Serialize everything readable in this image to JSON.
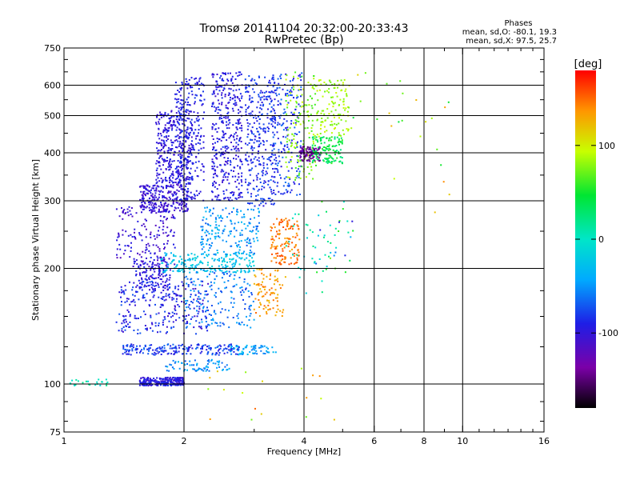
{
  "chart_data": {
    "type": "scatter",
    "title": "Tromsø 20141104 20:32:00-20:33:43",
    "subtitle": "RwPretec (Bp)",
    "xlabel": "Frequency [MHz]",
    "ylabel": "Stationary phase Virtual Height [km]",
    "x_scale": "log",
    "y_scale": "log",
    "xlim": [
      1,
      16
    ],
    "ylim": [
      75,
      750
    ],
    "x_ticks": [
      1,
      2,
      4,
      6,
      8,
      10,
      16
    ],
    "x_tick_labels": [
      "1",
      "2",
      "4",
      "6",
      "8",
      "10",
      "16"
    ],
    "y_ticks": [
      75,
      100,
      200,
      300,
      400,
      500,
      600,
      750
    ],
    "y_tick_labels": [
      "75",
      "100",
      "200",
      "300",
      "400",
      "500",
      "600",
      "750"
    ],
    "x_grid": [
      2,
      4,
      6,
      8,
      10
    ],
    "y_grid": [
      100,
      200,
      300,
      400,
      500,
      600
    ],
    "grid": true,
    "stats": {
      "heading": "Phases",
      "line_o": "mean, sd,O: -80.1, 19.3",
      "line_x": "mean, sd,X:  97.5, 25.7"
    },
    "colorbar": {
      "label": "[deg]",
      "range": [
        -180,
        180
      ],
      "ticks": [
        100,
        0,
        -100
      ],
      "tick_labels": [
        "100",
        "0",
        "-100"
      ]
    },
    "clusters": [
      {
        "f": [
          1.55,
          2.0
        ],
        "h": [
          99,
          104
        ],
        "phase": [
          -110,
          -80
        ],
        "n": 260
      },
      {
        "f": [
          1.03,
          1.3
        ],
        "h": [
          99,
          103
        ],
        "phase": [
          -20,
          20
        ],
        "n": 25
      },
      {
        "f": [
          1.4,
          2.75
        ],
        "h": [
          119,
          127
        ],
        "phase": [
          -100,
          -60
        ],
        "n": 200
      },
      {
        "f": [
          2.6,
          3.4
        ],
        "h": [
          119,
          126
        ],
        "phase": [
          -60,
          -20
        ],
        "n": 60
      },
      {
        "f": [
          1.8,
          2.6
        ],
        "h": [
          108,
          116
        ],
        "phase": [
          -70,
          -30
        ],
        "n": 70
      },
      {
        "f": [
          1.35,
          2.3
        ],
        "h": [
          135,
          185
        ],
        "phase": [
          -110,
          -70
        ],
        "n": 260
      },
      {
        "f": [
          1.5,
          1.85
        ],
        "h": [
          175,
          215
        ],
        "phase": [
          -110,
          -80
        ],
        "n": 140
      },
      {
        "f": [
          1.35,
          1.9
        ],
        "h": [
          200,
          290
        ],
        "phase": [
          -120,
          -90
        ],
        "n": 160
      },
      {
        "f": [
          1.75,
          3.0
        ],
        "h": [
          195,
          220
        ],
        "phase": [
          -40,
          -10
        ],
        "n": 200
      },
      {
        "f": [
          2.0,
          3.0
        ],
        "h": [
          140,
          200
        ],
        "phase": [
          -80,
          -40
        ],
        "n": 170
      },
      {
        "f": [
          2.2,
          3.1
        ],
        "h": [
          215,
          290
        ],
        "phase": [
          -70,
          -30
        ],
        "n": 180
      },
      {
        "f": [
          1.55,
          2.05
        ],
        "h": [
          280,
          330
        ],
        "phase": [
          -115,
          -90
        ],
        "n": 260
      },
      {
        "f": [
          1.7,
          2.1
        ],
        "h": [
          330,
          520
        ],
        "phase": [
          -110,
          -85
        ],
        "n": 330
      },
      {
        "f": [
          1.9,
          2.25
        ],
        "h": [
          300,
          630
        ],
        "phase": [
          -105,
          -80
        ],
        "n": 260
      },
      {
        "f": [
          2.35,
          2.8
        ],
        "h": [
          300,
          650
        ],
        "phase": [
          -110,
          -80
        ],
        "n": 380
      },
      {
        "f": [
          2.85,
          3.4
        ],
        "h": [
          290,
          640
        ],
        "phase": [
          -100,
          -70
        ],
        "n": 300
      },
      {
        "f": [
          3.0,
          3.6
        ],
        "h": [
          150,
          200
        ],
        "phase": [
          120,
          150
        ],
        "n": 90
      },
      {
        "f": [
          3.3,
          3.9
        ],
        "h": [
          205,
          270
        ],
        "phase": [
          130,
          160
        ],
        "n": 130
      },
      {
        "f": [
          3.3,
          3.95
        ],
        "h": [
          310,
          650
        ],
        "phase": [
          -100,
          -60
        ],
        "n": 200
      },
      {
        "f": [
          3.6,
          4.3
        ],
        "h": [
          340,
          650
        ],
        "phase": [
          60,
          100
        ],
        "n": 140
      },
      {
        "f": [
          3.9,
          4.4
        ],
        "h": [
          380,
          415
        ],
        "phase": [
          -150,
          -120
        ],
        "n": 110
      },
      {
        "f": [
          4.2,
          5.0
        ],
        "h": [
          375,
          440
        ],
        "phase": [
          20,
          60
        ],
        "n": 130
      },
      {
        "f": [
          4.3,
          5.2
        ],
        "h": [
          440,
          620
        ],
        "phase": [
          70,
          100
        ],
        "n": 120
      },
      {
        "f": [
          3.6,
          4.7
        ],
        "h": [
          170,
          290
        ],
        "phase": [
          -30,
          30
        ],
        "n": 35
      },
      {
        "f": [
          4.2,
          5.5
        ],
        "h": [
          195,
          300
        ],
        "phase": [
          -100,
          80
        ],
        "n": 30
      },
      {
        "f": [
          5.2,
          10.0
        ],
        "h": [
          280,
          650
        ],
        "phase": [
          40,
          140
        ],
        "n": 25
      },
      {
        "f": [
          2.3,
          5.0
        ],
        "h": [
          80,
          110
        ],
        "phase": [
          70,
          150
        ],
        "n": 18
      }
    ]
  }
}
